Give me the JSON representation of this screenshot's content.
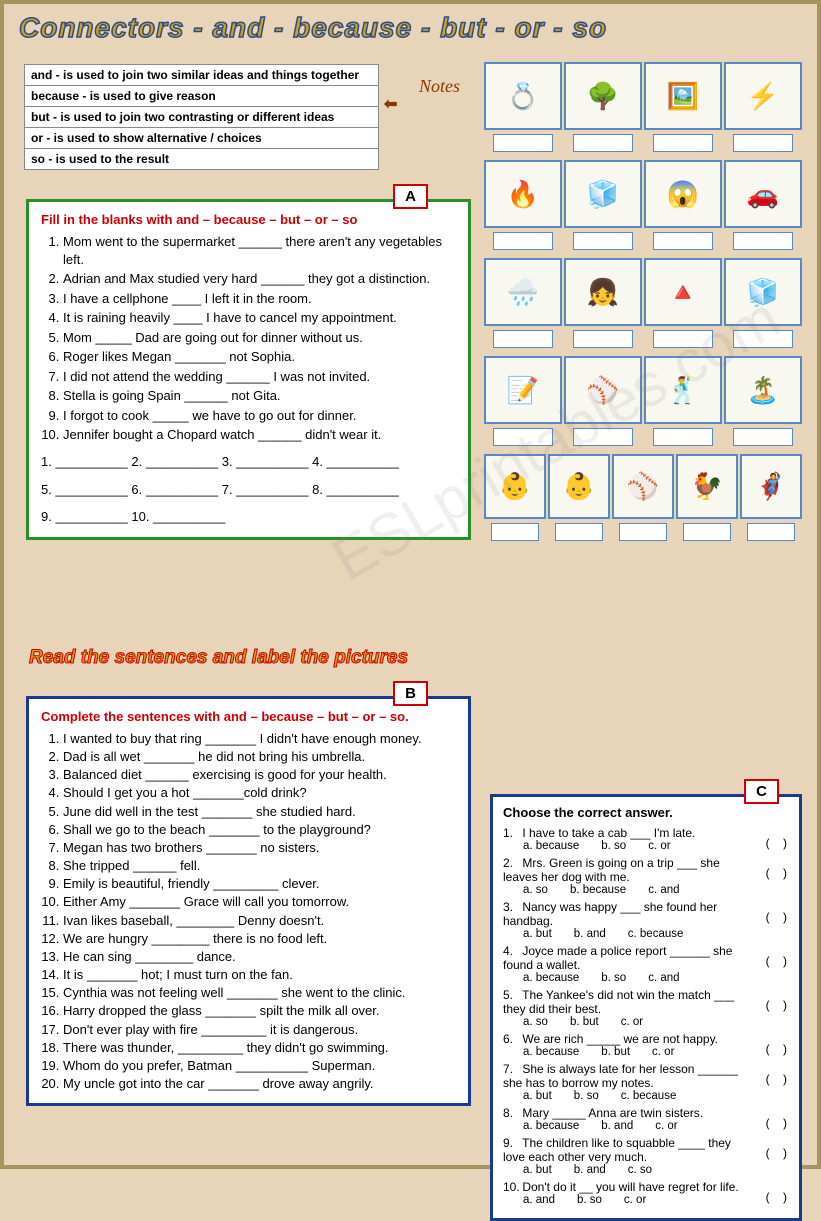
{
  "title": "Connectors  - and - because - but - or - so",
  "notes_label": "Notes",
  "notes": [
    "and - is used to join two similar ideas and things together",
    "because - is used to give reason",
    "but - is used to join two contrasting or different ideas",
    "or - is used to show alternative / choices",
    "so - is used to the result"
  ],
  "mid_title": "Read the sentences and label the pictures",
  "boxA": {
    "tag": "A",
    "instr": "Fill in the blanks with and – because – but – or – so",
    "items": [
      "Mom went to the supermarket ______ there aren't any vegetables left.",
      "Adrian and Max studied very hard ______ they got a distinction.",
      "I have a cellphone ____ I left it in the room.",
      "It is raining heavily ____ I have to cancel my appointment.",
      "Mom _____ Dad are going out for dinner without us.",
      "Roger likes Megan _______ not Sophia.",
      "I did not attend the wedding ______ I was not invited.",
      "Stella is going Spain ______ not Gita.",
      "I forgot to cook _____ we have to go out for dinner.",
      "Jennifer bought a Chopard watch ______ didn't wear it."
    ],
    "answers_lines": [
      "1. __________  2. __________ 3. __________  4. __________",
      "5. __________  6. __________ 7. __________  8. __________",
      "9. __________  10. __________"
    ]
  },
  "boxB": {
    "tag": "B",
    "instr": "Complete the sentences with and – because – but – or – so.",
    "items": [
      "I wanted to buy that ring _______ I didn't have enough money.",
      "Dad is all wet _______ he did not bring his umbrella.",
      "Balanced diet ______ exercising is good for your health.",
      "Should I get you a hot _______cold drink?",
      "June did well in the test _______ she studied hard.",
      "Shall we go to the beach _______ to the playground?",
      "Megan has two brothers _______ no sisters.",
      "She tripped ______ fell.",
      "Emily is beautiful, friendly _________ clever.",
      "Either Amy _______ Grace will call you tomorrow.",
      "Ivan likes baseball, ________ Denny doesn't.",
      "We are hungry ________ there is no food left.",
      "He can sing ________ dance.",
      "It is _______ hot; I must turn on the fan.",
      "Cynthia was not feeling well _______ she went to the clinic.",
      "Harry dropped the glass _______ spilt the milk all over.",
      "Don't ever play with fire _________ it is dangerous.",
      "There was thunder, _________ they didn't go swimming.",
      "Whom do you prefer, Batman __________ Superman.",
      "My uncle got into the car _______ drove away angrily."
    ]
  },
  "boxC": {
    "tag": "C",
    "instr": "Choose the correct answer.",
    "questions": [
      {
        "t": "I have to take a cab ___ I'm late.",
        "o": [
          "a. because",
          "b. so",
          "c. or"
        ]
      },
      {
        "t": "Mrs. Green is going on a trip ___ she leaves her dog with me.",
        "o": [
          "a. so",
          "b. because",
          "c. and"
        ]
      },
      {
        "t": "Nancy was happy ___ she found her handbag.",
        "o": [
          "a. but",
          "b. and",
          "c. because"
        ]
      },
      {
        "t": "Joyce made a police report ______ she found a wallet.",
        "o": [
          "a. because",
          "b. so",
          "c. and"
        ]
      },
      {
        "t": "The Yankee's did not win the match ___ they did their best.",
        "o": [
          "a. so",
          "b. but",
          "c. or"
        ]
      },
      {
        "t": "We are rich _____ we are not happy.",
        "o": [
          "a. because",
          "b. but",
          "c. or"
        ]
      },
      {
        "t": "She is always late for her lesson ______ she has to borrow my notes.",
        "o": [
          "a. but",
          "b. so",
          "c. because"
        ]
      },
      {
        "t": "Mary _____ Anna are twin sisters.",
        "o": [
          "a. because",
          "b. and",
          "c. or"
        ]
      },
      {
        "t": "The children like to squabble ____ they love each other very much.",
        "o": [
          "a. but",
          "b. and",
          "c. so"
        ]
      },
      {
        "t": "Don't do it __ you will have regret for life.",
        "o": [
          "a. and",
          "b. so",
          "c. or"
        ]
      }
    ]
  },
  "pics": [
    [
      "💍",
      "🌳",
      "🖼️",
      "⚡"
    ],
    [
      "🔥",
      "🧊",
      "😱",
      "🚗"
    ],
    [
      "🌧️",
      "👧",
      "🔺",
      "🧊"
    ],
    [
      "📝",
      "⚾",
      "🕺",
      "🏝️"
    ],
    [
      "👶",
      "👶",
      "⚾",
      "🐓",
      "🦸"
    ]
  ],
  "watermark": "ESLprintables.com"
}
